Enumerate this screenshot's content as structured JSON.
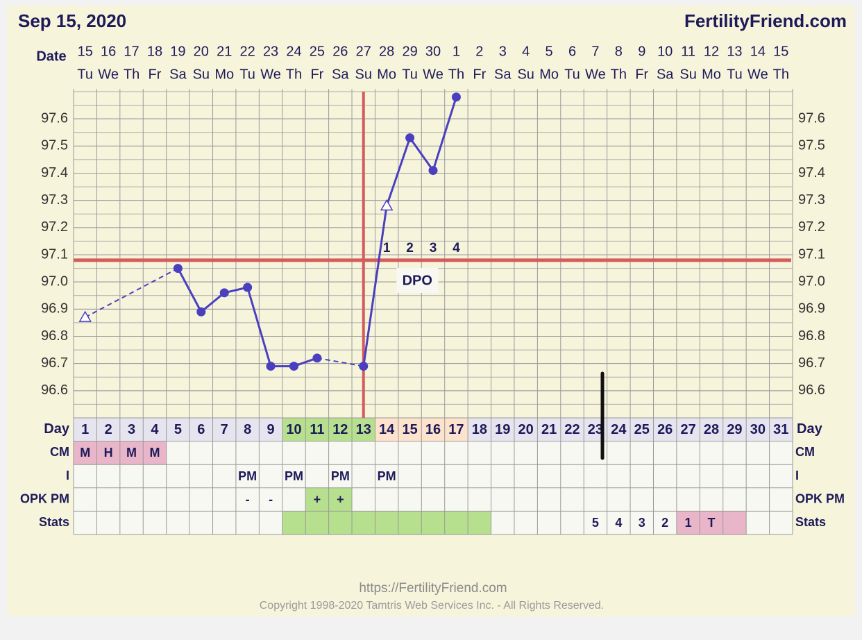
{
  "chart_data": {
    "type": "line",
    "title": "Sep 15, 2020",
    "site": "FertilityFriend.com",
    "date_label": "Date",
    "dates": [
      15,
      16,
      17,
      18,
      19,
      20,
      21,
      22,
      23,
      24,
      25,
      26,
      27,
      28,
      29,
      30,
      1,
      2,
      3,
      4,
      5,
      6,
      7,
      8,
      9,
      10,
      11,
      12,
      13,
      14,
      15
    ],
    "weekdays": [
      "Tu",
      "We",
      "Th",
      "Fr",
      "Sa",
      "Su",
      "Mo",
      "Tu",
      "We",
      "Th",
      "Fr",
      "Sa",
      "Su",
      "Mo",
      "Tu",
      "We",
      "Th",
      "Fr",
      "Sa",
      "Su",
      "Mo",
      "Tu",
      "We",
      "Th",
      "Fr",
      "Sa",
      "Su",
      "Mo",
      "Tu",
      "We",
      "Th"
    ],
    "day_label": "Day",
    "categories": [
      1,
      2,
      3,
      4,
      5,
      6,
      7,
      8,
      9,
      10,
      11,
      12,
      13,
      14,
      15,
      16,
      17,
      18,
      19,
      20,
      21,
      22,
      23,
      24,
      25,
      26,
      27,
      28,
      29,
      30,
      31
    ],
    "day_fills": [
      "#e6e4ee",
      "#e6e4ee",
      "#e6e4ee",
      "#e6e4ee",
      "#e6e4ee",
      "#e6e4ee",
      "#e6e4ee",
      "#e6e4ee",
      "#e6e4ee",
      "#b6e08e",
      "#b6e08e",
      "#b6e08e",
      "#b6e08e",
      "#fde2cc",
      "#fde2cc",
      "#fde2cc",
      "#fde2cc",
      "#e6e4ee",
      "#e6e4ee",
      "#e6e4ee",
      "#e6e4ee",
      "#e6e4ee",
      "#e6e4ee",
      "#e6e4ee",
      "#e6e4ee",
      "#e6e4ee",
      "#e6e4ee",
      "#e6e4ee",
      "#e6e4ee",
      "#e6e4ee",
      "#e6e4ee"
    ],
    "series": [
      {
        "color": "#4a3fbf",
        "values": [
          96.87,
          null,
          null,
          null,
          97.05,
          96.89,
          96.96,
          96.98,
          96.69,
          96.69,
          96.72,
          null,
          96.69,
          97.28,
          97.53,
          97.41,
          97.68,
          null,
          null,
          null,
          null,
          null,
          null,
          null,
          null,
          null,
          null,
          null,
          null,
          null,
          null
        ],
        "markers": [
          "triangle",
          null,
          null,
          null,
          "circle",
          "circle",
          "circle",
          "circle",
          "circle",
          "circle",
          "circle",
          null,
          "circle",
          "triangle",
          "circle",
          "circle",
          "circle",
          null,
          null,
          null,
          null,
          null,
          null,
          null,
          null,
          null,
          null,
          null,
          null,
          null,
          null
        ]
      }
    ],
    "ylim": [
      96.5,
      97.7
    ],
    "yticks": [
      96.6,
      96.7,
      96.8,
      96.9,
      {
        "value": 97,
        "label": "97.0"
      },
      97.1,
      97.2,
      97.3,
      97.4,
      97.5,
      97.6
    ],
    "grid": true,
    "coverline": 97.08,
    "marker_line_color": "#d45c5c",
    "ovulation_day": 13,
    "dpo": [
      null,
      null,
      null,
      null,
      null,
      null,
      null,
      null,
      null,
      null,
      null,
      null,
      null,
      1,
      2,
      3,
      4,
      null,
      null,
      null,
      null,
      null,
      null,
      null,
      null,
      null,
      null,
      null,
      null,
      null,
      null
    ],
    "dpo_label": "DPO",
    "rows": [
      {
        "label": "CM",
        "cells": [
          "M",
          "H",
          "M",
          "M",
          null,
          null,
          null,
          null,
          null,
          null,
          null,
          null,
          null,
          null,
          null,
          null,
          null,
          null,
          null,
          null,
          null,
          null,
          null,
          null,
          null,
          null,
          null,
          null,
          null,
          null,
          null
        ],
        "fills": [
          "#e8b6c8",
          "#e8b6c8",
          "#e8b6c8",
          "#e8b6c8",
          null,
          null,
          null,
          null,
          null,
          null,
          null,
          null,
          null,
          null,
          null,
          null,
          null,
          null,
          null,
          null,
          null,
          null,
          null,
          null,
          null,
          null,
          null,
          null,
          null,
          null,
          null
        ]
      },
      {
        "label": "I",
        "cells": [
          null,
          null,
          null,
          null,
          null,
          null,
          null,
          "PM",
          null,
          "PM",
          null,
          "PM",
          null,
          "PM",
          null,
          null,
          null,
          null,
          null,
          null,
          null,
          null,
          null,
          null,
          null,
          null,
          null,
          null,
          null,
          null,
          null
        ],
        "fills": [
          null,
          null,
          null,
          null,
          null,
          null,
          null,
          null,
          null,
          null,
          null,
          null,
          null,
          null,
          null,
          null,
          null,
          null,
          null,
          null,
          null,
          null,
          null,
          null,
          null,
          null,
          null,
          null,
          null,
          null,
          null
        ]
      },
      {
        "label": "OPK PM",
        "cells": [
          null,
          null,
          null,
          null,
          null,
          null,
          null,
          "-",
          "-",
          null,
          "+",
          "+",
          null,
          null,
          null,
          null,
          null,
          null,
          null,
          null,
          null,
          null,
          null,
          null,
          null,
          null,
          null,
          null,
          null,
          null,
          null
        ],
        "fills": [
          null,
          null,
          null,
          null,
          null,
          null,
          null,
          null,
          null,
          null,
          "#b6e08e",
          "#b6e08e",
          null,
          null,
          null,
          null,
          null,
          null,
          null,
          null,
          null,
          null,
          null,
          null,
          null,
          null,
          null,
          null,
          null,
          null,
          null
        ]
      },
      {
        "label": "Stats",
        "cells": [
          null,
          null,
          null,
          null,
          null,
          null,
          null,
          null,
          null,
          null,
          null,
          null,
          null,
          null,
          null,
          null,
          null,
          null,
          null,
          null,
          null,
          null,
          "5",
          "4",
          "3",
          "2",
          "1",
          "T",
          null,
          null,
          null
        ],
        "fills": [
          null,
          null,
          null,
          null,
          null,
          null,
          null,
          null,
          null,
          "#b6e08e",
          "#b6e08e",
          "#b6e08e",
          "#b6e08e",
          "#b6e08e",
          "#b6e08e",
          "#b6e08e",
          "#b6e08e",
          "#b6e08e",
          null,
          null,
          null,
          null,
          null,
          null,
          null,
          null,
          "#e8b6c8",
          "#e8b6c8",
          "#e8b6c8",
          null,
          null
        ]
      }
    ],
    "footer_url": "https://FertilityFriend.com",
    "copyright": "Copyright 1998-2020 Tamtris Web Services Inc. - All Rights Reserved."
  }
}
